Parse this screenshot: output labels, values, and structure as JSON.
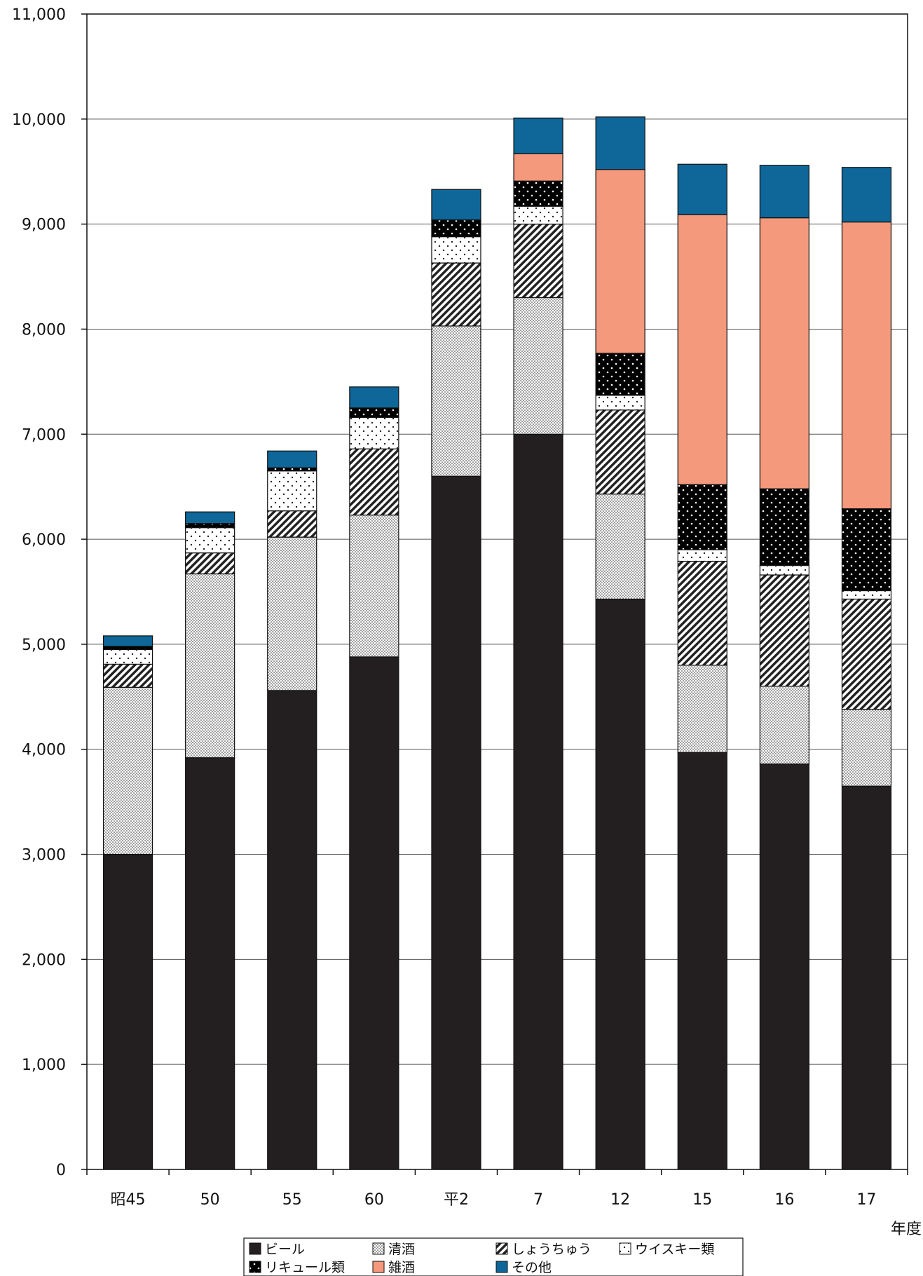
{
  "chart_data": {
    "type": "bar",
    "stacked": true,
    "categories": [
      "昭45",
      "50",
      "55",
      "60",
      "平2",
      "7",
      "12",
      "15",
      "16",
      "17"
    ],
    "xlabel": "年度",
    "ylabel": "",
    "ylim": [
      0,
      11000
    ],
    "yticks": [
      0,
      1000,
      2000,
      3000,
      4000,
      5000,
      6000,
      7000,
      8000,
      9000,
      10000,
      11000
    ],
    "ytick_labels": [
      "0",
      "1,000",
      "2,000",
      "3,000",
      "4,000",
      "5,000",
      "6,000",
      "7,000",
      "8,000",
      "9,000",
      "10,000",
      "11,000"
    ],
    "grid": true,
    "legend_position": "bottom",
    "series": [
      {
        "name": "ビール",
        "color": "#231f20",
        "pattern": "solid",
        "values": [
          3000,
          3920,
          4560,
          4880,
          6600,
          7000,
          5430,
          3970,
          3860,
          3650
        ]
      },
      {
        "name": "清酒",
        "color": "#e8e8e8",
        "pattern": "fine-dots",
        "values": [
          1590,
          1750,
          1460,
          1350,
          1430,
          1300,
          1000,
          830,
          740,
          730
        ]
      },
      {
        "name": "しょうちゅう",
        "color": "#bdbdbd",
        "pattern": "diagonal-stripes",
        "values": [
          220,
          200,
          250,
          630,
          600,
          700,
          800,
          990,
          1060,
          1050
        ]
      },
      {
        "name": "ウイスキー類",
        "color": "#ffffff",
        "pattern": "sparse-dots",
        "values": [
          140,
          240,
          380,
          300,
          250,
          170,
          140,
          110,
          90,
          80
        ]
      },
      {
        "name": "リキュール類",
        "color": "#000000",
        "pattern": "dotted-black",
        "values": [
          30,
          40,
          30,
          90,
          160,
          240,
          400,
          620,
          730,
          780
        ]
      },
      {
        "name": "雑酒",
        "color": "#f4997b",
        "pattern": "solid",
        "values": [
          0,
          0,
          0,
          0,
          0,
          260,
          1750,
          2570,
          2580,
          2730
        ]
      },
      {
        "name": "その他",
        "color": "#0e6699",
        "pattern": "solid",
        "values": [
          100,
          110,
          160,
          200,
          290,
          340,
          500,
          480,
          500,
          520
        ]
      }
    ]
  }
}
